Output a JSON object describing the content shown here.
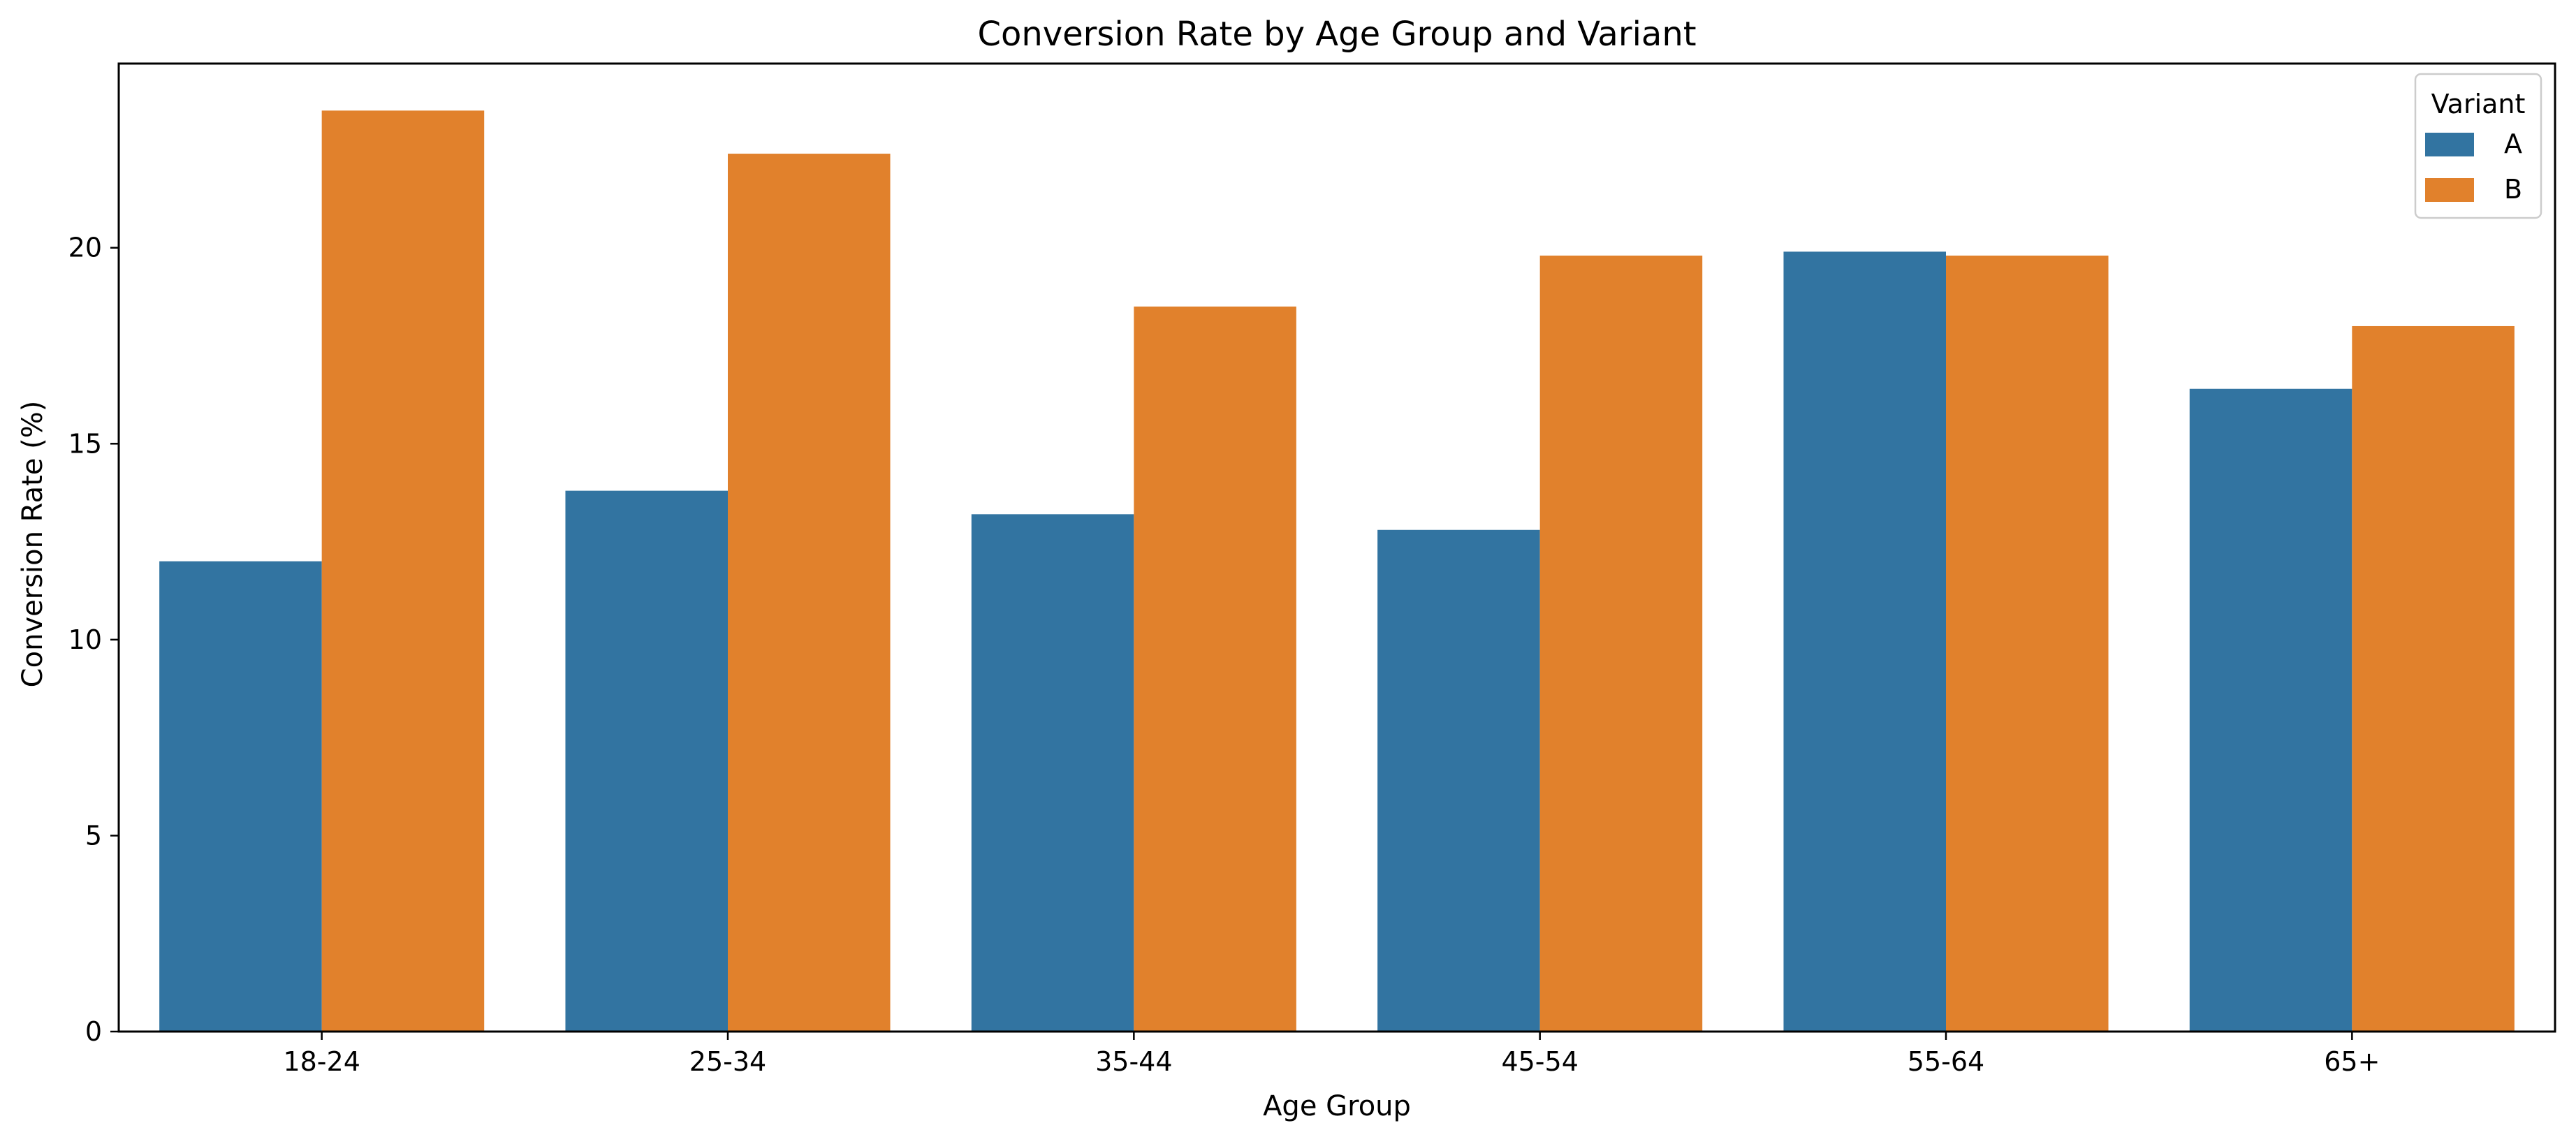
{
  "chart_data": {
    "type": "bar",
    "title": "Conversion Rate by Age Group and Variant",
    "xlabel": "Age Group",
    "ylabel": "Conversion Rate (%)",
    "categories": [
      "18-24",
      "25-34",
      "35-44",
      "45-54",
      "55-64",
      "65+"
    ],
    "series": [
      {
        "name": "A",
        "color": "#3274a1",
        "values": [
          12.0,
          13.8,
          13.2,
          12.8,
          19.9,
          16.4
        ]
      },
      {
        "name": "B",
        "color": "#e1812c",
        "values": [
          23.5,
          22.4,
          18.5,
          19.8,
          19.8,
          18.0
        ]
      }
    ],
    "ylim": [
      0,
      24.7
    ],
    "yticks": [
      0,
      5,
      10,
      15,
      20
    ],
    "grid": false,
    "legend": {
      "title": "Variant",
      "position": "top-right"
    }
  }
}
